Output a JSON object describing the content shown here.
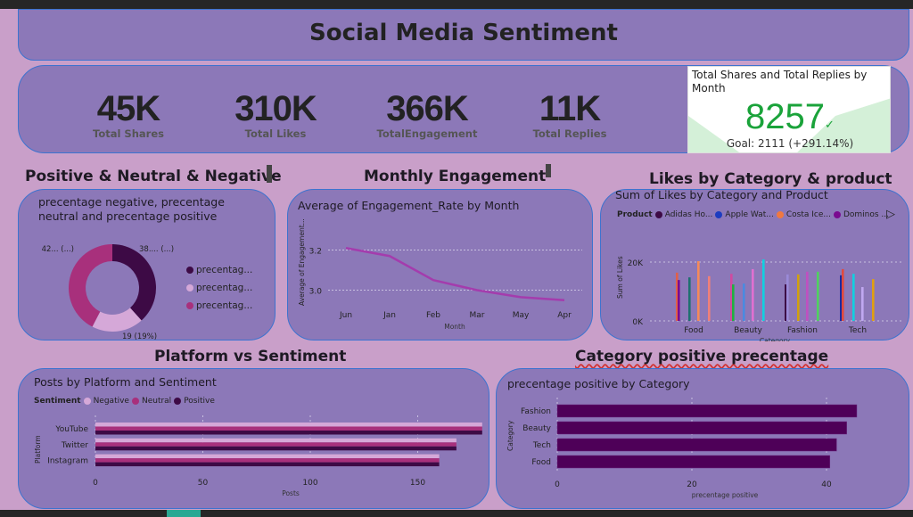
{
  "title": "Social Media Sentiment",
  "kpis": [
    {
      "value": "45K",
      "label": "Total Shares"
    },
    {
      "value": "310K",
      "label": "Total Likes"
    },
    {
      "value": "366K",
      "label": "TotalEngagement"
    },
    {
      "value": "11K",
      "label": "Total Replies"
    }
  ],
  "kpi_card": {
    "title": "Total Shares and Total Replies by Month",
    "value": "8257",
    "goal": "Goal: 2111 (+291.14%)",
    "check_icon": "check-icon",
    "color": "#1aa33a"
  },
  "sections": {
    "sentiment": "Positive & Neutral & Negative",
    "monthly": "Monthly Engagement",
    "likes": "Likes by Category & product",
    "platform": "Platform vs Sentiment",
    "category": "Category positive precentage"
  },
  "colors": {
    "background": "#c99fc9",
    "panel": "#8c78b8",
    "border": "#3d73cf",
    "positive": "#3d0a45",
    "negative": "#d5a8d8",
    "neutral": "#a8307c"
  },
  "chart_data": [
    {
      "type": "pie",
      "title": "precentage negative, precentage neutral and precentage positive",
      "slices": [
        {
          "name": "precentag...",
          "value": 38,
          "label": "38.... (...)",
          "color": "#3d0a45"
        },
        {
          "name": "precentag...",
          "value": 19,
          "label": "19 (19%)",
          "color": "#d5a8d8"
        },
        {
          "name": "precentag...",
          "value": 42,
          "label": "42... (...)",
          "color": "#a8307c"
        }
      ]
    },
    {
      "type": "line",
      "title": "Average of Engagement_Rate by Month",
      "xlabel": "Month",
      "ylabel": "Average of Engagement...",
      "categories": [
        "Jun",
        "Jan",
        "Feb",
        "Mar",
        "May",
        "Apr"
      ],
      "values": [
        3.21,
        3.17,
        3.05,
        3.0,
        2.965,
        2.95
      ],
      "yticks": [
        "3.2",
        "3.0"
      ],
      "ylim": [
        2.9,
        3.3
      ],
      "grid": true,
      "color": "#a43cad"
    },
    {
      "type": "bar",
      "title": "Sum of Likes by Category and Product",
      "xlabel": "Category",
      "ylabel": "Sum of Likes",
      "legend_title": "Product",
      "legend": [
        {
          "name": "Adidas Ho...",
          "color": "#3d0a45"
        },
        {
          "name": "Apple Wat...",
          "color": "#1d3cc0"
        },
        {
          "name": "Costa Ice...",
          "color": "#f07840"
        },
        {
          "name": "Dominos ...",
          "color": "#7a0a90"
        }
      ],
      "yticks": [
        "20K",
        "0K"
      ],
      "ylim": [
        0,
        22000
      ],
      "categories": [
        "Food",
        "Beauty",
        "Fashion",
        "Tech"
      ],
      "bars": [
        [
          {
            "v": 16400,
            "c": "#e0604a"
          },
          {
            "v": 13900,
            "c": "#7a0a90"
          },
          {
            "v": 14800,
            "c": "#1f7070"
          },
          {
            "v": 20300,
            "c": "#f48a5a"
          },
          {
            "v": 15200,
            "c": "#f08078"
          }
        ],
        [
          {
            "v": 16000,
            "c": "#d04aa0"
          },
          {
            "v": 12400,
            "c": "#20b040"
          },
          {
            "v": 12700,
            "c": "#4a8ae0"
          },
          {
            "v": 17600,
            "c": "#e070d0"
          },
          {
            "v": 20900,
            "c": "#10d0e0"
          }
        ],
        [
          {
            "v": 12400,
            "c": "#3d0a45"
          },
          {
            "v": 15800,
            "c": "#9a8ad8"
          },
          {
            "v": 15800,
            "c": "#d0a010"
          },
          {
            "v": 16700,
            "c": "#c050c0"
          },
          {
            "v": 16700,
            "c": "#50d060"
          }
        ],
        [
          {
            "v": 15500,
            "c": "#1a2aa0"
          },
          {
            "v": 17600,
            "c": "#e04a40"
          },
          {
            "v": 16000,
            "c": "#10d0e0"
          },
          {
            "v": 11500,
            "c": "#c0a8f0"
          },
          {
            "v": 14200,
            "c": "#e0a010"
          }
        ]
      ]
    },
    {
      "type": "bar",
      "orientation": "horizontal",
      "title": "Posts by Platform and Sentiment",
      "xlabel": "Posts",
      "ylabel": "Platform",
      "legend_title": "Sentiment",
      "categories": [
        "YouTube",
        "Twitter",
        "Instagram"
      ],
      "series": [
        {
          "name": "Negative",
          "values": [
            180,
            168,
            160
          ],
          "color": "#d5a8d8"
        },
        {
          "name": "Neutral",
          "values": [
            180,
            168,
            160
          ],
          "color": "#a8307c"
        },
        {
          "name": "Positive",
          "values": [
            180,
            168,
            160
          ],
          "color": "#3d0a45"
        }
      ],
      "xticks": [
        "0",
        "50",
        "100",
        "150"
      ],
      "xlim": [
        0,
        180
      ]
    },
    {
      "type": "bar",
      "orientation": "horizontal",
      "title": "precentage positive by Category",
      "xlabel": "precentage positive",
      "ylabel": "Category",
      "categories": [
        "Fashion",
        "Beauty",
        "Tech",
        "Food"
      ],
      "values": [
        44.5,
        43,
        41.5,
        40.5
      ],
      "xticks": [
        "0",
        "20",
        "40"
      ],
      "xlim": [
        0,
        50
      ],
      "color": "#4e0058"
    }
  ]
}
